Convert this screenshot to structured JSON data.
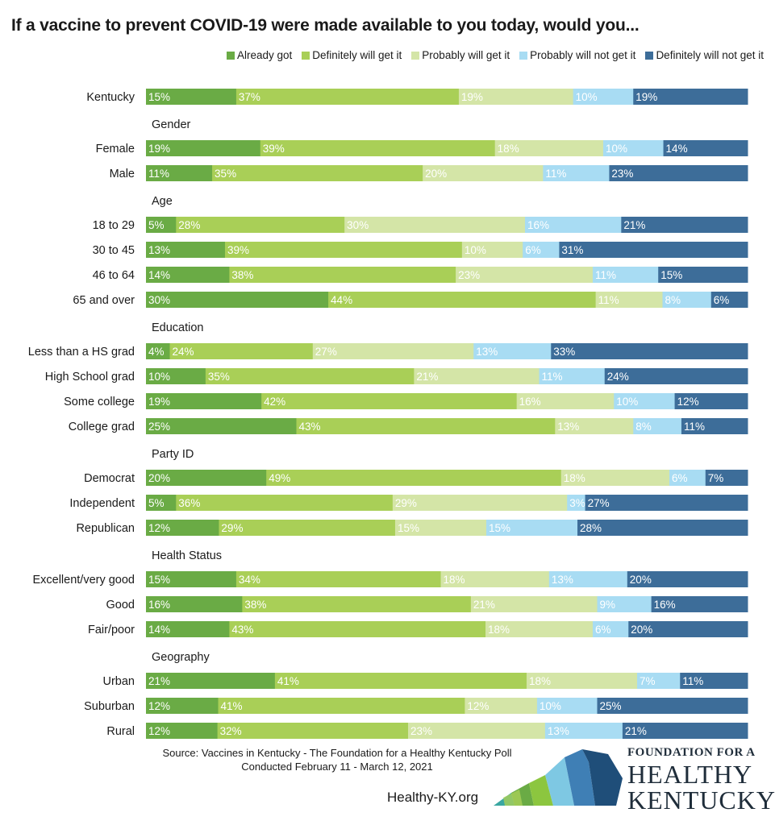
{
  "colors": {
    "already_got": "#6aab45",
    "definitely_will": "#a9cf57",
    "probably_will": "#d4e5a7",
    "probably_not": "#a8dcf3",
    "definitely_not": "#3d6d99",
    "logo_navy": "#1f4e79",
    "logo_blue": "#3f7fb5",
    "logo_cyan": "#7ec8e3",
    "logo_green": "#8cc63f",
    "logo_teal": "#3aa7a1"
  },
  "footer": {
    "source_line1": "Source: Vaccines in Kentucky - The Foundation for a Healthy Kentucky Poll",
    "source_line2": "Conducted February 11 - March 12, 2021",
    "url": "Healthy-KY.org",
    "logo_line1": "FOUNDATION FOR A",
    "logo_line2": "HEALTHY",
    "logo_line3": "KENTUCKY"
  },
  "chart_data": {
    "type": "bar",
    "orientation": "horizontal",
    "stacked": true,
    "title": "If a vaccine to prevent COVID-19 were made available to you today, would you...",
    "legend_position": "top-right",
    "series": [
      {
        "name": "Already got",
        "color": "#6aab45"
      },
      {
        "name": "Definitely will get it",
        "color": "#a9cf57"
      },
      {
        "name": "Probably will get it",
        "color": "#d4e5a7"
      },
      {
        "name": "Probably will not get it",
        "color": "#a8dcf3"
      },
      {
        "name": "Definitely will not get it",
        "color": "#3d6d99"
      }
    ],
    "groups": [
      {
        "heading": "",
        "rows": [
          {
            "label": "Kentucky",
            "values": [
              15,
              37,
              19,
              10,
              19
            ]
          }
        ]
      },
      {
        "heading": "Gender",
        "rows": [
          {
            "label": "Female",
            "values": [
              19,
              39,
              18,
              10,
              14
            ]
          },
          {
            "label": "Male",
            "values": [
              11,
              35,
              20,
              11,
              23
            ]
          }
        ]
      },
      {
        "heading": "Age",
        "rows": [
          {
            "label": "18 to 29",
            "values": [
              5,
              28,
              30,
              16,
              21
            ]
          },
          {
            "label": "30 to 45",
            "values": [
              13,
              39,
              10,
              6,
              31
            ]
          },
          {
            "label": "46 to 64",
            "values": [
              14,
              38,
              23,
              11,
              15
            ]
          },
          {
            "label": "65 and over",
            "values": [
              30,
              44,
              11,
              8,
              6
            ]
          }
        ]
      },
      {
        "heading": "Education",
        "rows": [
          {
            "label": "Less than a HS grad",
            "values": [
              4,
              24,
              27,
              13,
              33
            ]
          },
          {
            "label": "High School grad",
            "values": [
              10,
              35,
              21,
              11,
              24
            ]
          },
          {
            "label": "Some college",
            "values": [
              19,
              42,
              16,
              10,
              12
            ]
          },
          {
            "label": "College grad",
            "values": [
              25,
              43,
              13,
              8,
              11
            ]
          }
        ]
      },
      {
        "heading": "Party ID",
        "rows": [
          {
            "label": "Democrat",
            "values": [
              20,
              49,
              18,
              6,
              7
            ]
          },
          {
            "label": "Independent",
            "values": [
              5,
              36,
              29,
              3,
              27
            ]
          },
          {
            "label": "Republican",
            "values": [
              12,
              29,
              15,
              15,
              28
            ]
          }
        ]
      },
      {
        "heading": "Health Status",
        "rows": [
          {
            "label": "Excellent/very good",
            "values": [
              15,
              34,
              18,
              13,
              20
            ]
          },
          {
            "label": "Good",
            "values": [
              16,
              38,
              21,
              9,
              16
            ]
          },
          {
            "label": "Fair/poor",
            "values": [
              14,
              43,
              18,
              6,
              20
            ]
          }
        ]
      },
      {
        "heading": "Geography",
        "rows": [
          {
            "label": "Urban",
            "values": [
              21,
              41,
              18,
              7,
              11
            ]
          },
          {
            "label": "Suburban",
            "values": [
              12,
              41,
              12,
              10,
              25
            ]
          },
          {
            "label": "Rural",
            "values": [
              12,
              32,
              23,
              13,
              21
            ]
          }
        ]
      }
    ]
  }
}
